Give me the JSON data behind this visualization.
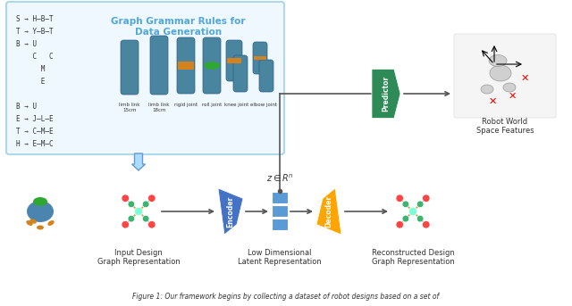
{
  "title": "Figure 1: GLSO Framework Diagram",
  "bg_color": "#ffffff",
  "box_color": "#add8e6",
  "box_bg": "#f0f8ff",
  "grammar_title": "Graph Grammar Rules for\nData Generation",
  "grammar_title_color": "#4fa8d8",
  "encoder_color": "#4472c4",
  "decoder_color": "#ffa500",
  "predictor_color": "#2e8b57",
  "latent_color": "#5b9bd5",
  "node_center_color": "#7fffd4",
  "node_red_color": "#ff4444",
  "node_green_color": "#3cb371",
  "edge_color": "#808080",
  "arrow_color": "#555555",
  "label_input": "Input Design\nGraph Representation",
  "label_latent": "Low Dimensional\nLatent Representation",
  "label_reconstructed": "Reconstructed Design\nGraph Representation",
  "label_robot_world": "Robot World\nSpace Features",
  "label_encoder": "Encoder",
  "label_decoder": "Decoder",
  "label_predictor": "Predictor",
  "label_z": "$z \\in R^n$",
  "figsize": [
    6.4,
    3.43
  ],
  "dpi": 100,
  "rule_texts": [
    "S → H–B–T",
    "T → Y–B–T",
    "B → U",
    "    C   C",
    "      M",
    "      E",
    "",
    "B → U",
    "E → J–L–E",
    "T → C–M–E",
    "H → E–M–C"
  ],
  "part_labels": [
    "limb link\n15cm",
    "limb link\n18cm",
    "rigid joint",
    "roll joint",
    "knee joint",
    "elbow joint"
  ],
  "body_color": "#4a85a0",
  "ring_color": "#d4821e",
  "disc_color": "#2ea830",
  "caption": "Figure 1: Our framework begins by collecting a dataset of robot designs based on a set of"
}
